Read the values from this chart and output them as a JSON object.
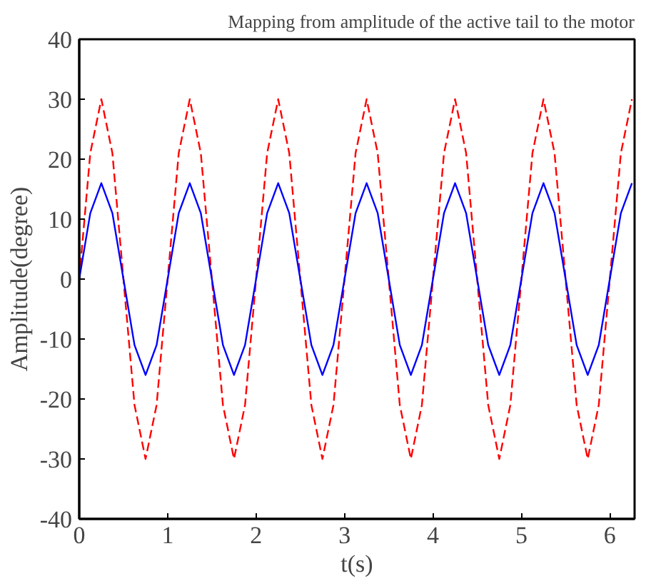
{
  "chart_data": {
    "type": "line",
    "title": "Mapping from amplitude of the active tail to the motor",
    "xlabel": "t(s)",
    "ylabel": "Amplitude(degree)",
    "x": [
      0,
      0.125,
      0.25,
      0.375,
      0.5,
      0.625,
      0.75,
      0.875,
      1,
      1.125,
      1.25,
      1.375,
      1.5,
      1.625,
      1.75,
      1.875,
      2,
      2.125,
      2.25,
      2.375,
      2.5,
      2.625,
      2.75,
      2.875,
      3,
      3.125,
      3.25,
      3.375,
      3.5,
      3.625,
      3.75,
      3.875,
      4,
      4.125,
      4.25,
      4.375,
      4.5,
      4.625,
      4.75,
      4.875,
      5,
      5.125,
      5.25,
      5.375,
      5.5,
      5.625,
      5.75,
      5.875,
      6,
      6.125,
      6.25
    ],
    "series": [
      {
        "color": "#ff0000",
        "line_style": "dashed",
        "values": [
          0,
          21,
          30,
          21,
          0,
          -21,
          -30,
          -21,
          0,
          21,
          30,
          21,
          0,
          -21,
          -30,
          -21,
          0,
          21,
          30,
          21,
          0,
          -21,
          -30,
          -21,
          0,
          21,
          30,
          21,
          0,
          -21,
          -30,
          -21,
          0,
          21,
          30,
          21,
          0,
          -21,
          -30,
          -21,
          0,
          21,
          30,
          21,
          0,
          -21,
          -30,
          -21,
          0,
          21,
          30
        ]
      },
      {
        "color": "#0000ff",
        "line_style": "solid",
        "values": [
          0,
          11,
          16,
          11,
          0,
          -11,
          -16,
          -11,
          0,
          11,
          16,
          11,
          0,
          -11,
          -16,
          -11,
          0,
          11,
          16,
          11,
          0,
          -11,
          -16,
          -11,
          0,
          11,
          16,
          11,
          0,
          -11,
          -16,
          -11,
          0,
          11,
          16,
          11,
          0,
          -11,
          -16,
          -11,
          0,
          11,
          16,
          11,
          0,
          -11,
          -16,
          -11,
          0,
          11,
          16
        ]
      }
    ],
    "xlim": [
      0,
      6.28
    ],
    "ylim": [
      -40,
      40
    ],
    "xticks": [
      0,
      1,
      2,
      3,
      4,
      5,
      6
    ],
    "yticks": [
      -40,
      -30,
      -20,
      -10,
      0,
      10,
      20,
      30,
      40
    ],
    "grid": false
  }
}
